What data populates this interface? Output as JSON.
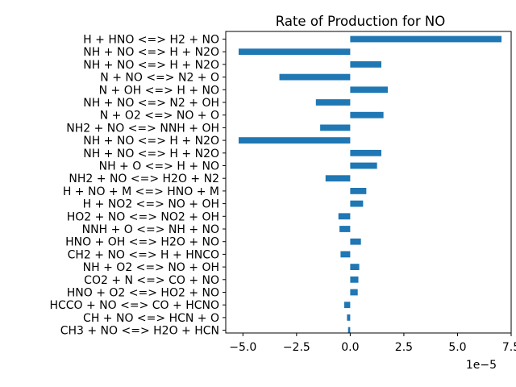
{
  "chart_data": {
    "type": "bar",
    "orientation": "horizontal",
    "title": "Rate of Production for NO",
    "xlabel": "",
    "ylabel": "",
    "offset_text": "1e−5",
    "bar_color": "#1f77b4",
    "xlim": [
      -5.8,
      7.5
    ],
    "xticks": [
      -5.0,
      -2.5,
      0.0,
      2.5,
      5.0,
      7.5
    ],
    "xtick_labels": [
      "−5.0",
      "−2.5",
      "0.0",
      "2.5",
      "5.0",
      "7.5"
    ],
    "grid": false,
    "categories": [
      "H + HNO <=> H2 + NO",
      "NH + NO <=> H + N2O",
      "NH + NO <=> H + N2O",
      "N + NO <=> N2 + O",
      "N + OH <=> H + NO",
      "NH + NO <=> N2 + OH",
      "N + O2 <=> NO + O",
      "NH2 + NO <=> NNH + OH",
      "NH + NO <=> H + N2O",
      "NH + NO <=> H + N2O",
      "NH + O <=> H + NO",
      "NH2 + NO <=> H2O + N2",
      "H + NO + M <=> HNO + M",
      "H + NO2 <=> NO + OH",
      "HO2 + NO <=> NO2 + OH",
      "NNH + O <=> NH + NO",
      "HNO + OH <=> H2O + NO",
      "CH2 + NO <=> H + HNCO",
      "NH + O2 <=> NO + OH",
      "CO2 + N <=> CO + NO",
      "HNO + O2 <=> HO2 + NO",
      "HCCO + NO <=> CO + HCNO",
      "CH + NO <=> HCN + O",
      "CH3 + NO <=> H2O + HCN"
    ],
    "values": [
      7.05,
      -5.2,
      1.45,
      -3.3,
      1.75,
      -1.6,
      1.55,
      -1.4,
      -5.2,
      1.45,
      1.25,
      -1.15,
      0.75,
      0.6,
      -0.55,
      -0.5,
      0.5,
      -0.45,
      0.42,
      0.38,
      0.35,
      -0.28,
      -0.15,
      -0.1
    ]
  }
}
